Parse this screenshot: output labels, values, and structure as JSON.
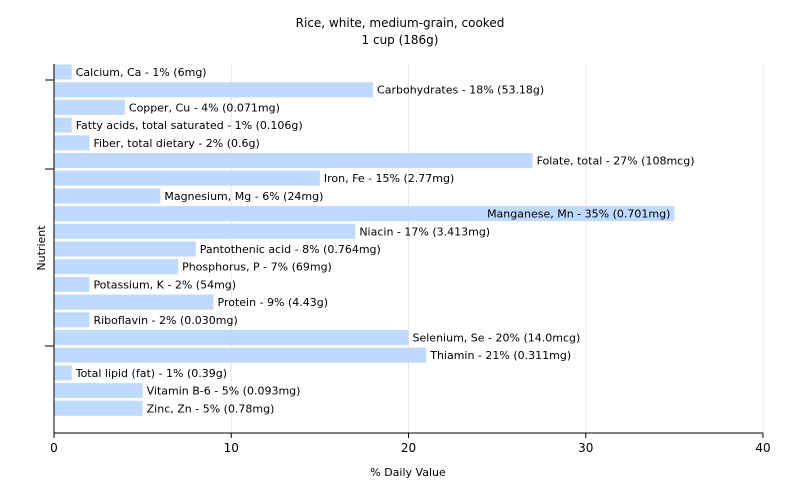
{
  "chart_data": {
    "type": "bar",
    "orientation": "horizontal",
    "title": "Rice, white, medium-grain, cooked",
    "subtitle": "1 cup (186g)",
    "xlabel": "% Daily Value",
    "ylabel": "Nutrient",
    "xlim": [
      0,
      40
    ],
    "xticks": [
      "0",
      "10",
      "20",
      "30",
      "40"
    ],
    "grid": true,
    "bar_color": "#bfd9ff",
    "grid_color": "#e6e6e6",
    "categories": [
      "Calcium, Ca - 1% (6mg)",
      "Carbohydrates - 18% (53.18g)",
      "Copper, Cu - 4% (0.071mg)",
      "Fatty acids, total saturated - 1% (0.106g)",
      "Fiber, total dietary - 2% (0.6g)",
      "Folate, total - 27% (108mcg)",
      "Iron, Fe - 15% (2.77mg)",
      "Magnesium, Mg - 6% (24mg)",
      "Manganese, Mn - 35% (0.701mg)",
      "Niacin - 17% (3.413mg)",
      "Pantothenic acid - 8% (0.764mg)",
      "Phosphorus, P - 7% (69mg)",
      "Potassium, K - 2% (54mg)",
      "Protein - 9% (4.43g)",
      "Riboflavin - 2% (0.030mg)",
      "Selenium, Se - 20% (14.0mcg)",
      "Thiamin - 21% (0.311mg)",
      "Total lipid (fat) - 1% (0.39g)",
      "Vitamin B-6 - 5% (0.093mg)",
      "Zinc, Zn - 5% (0.78mg)"
    ],
    "values": [
      1,
      18,
      4,
      1,
      2,
      27,
      15,
      6,
      35,
      17,
      8,
      7,
      2,
      9,
      2,
      20,
      21,
      1,
      5,
      5
    ]
  }
}
